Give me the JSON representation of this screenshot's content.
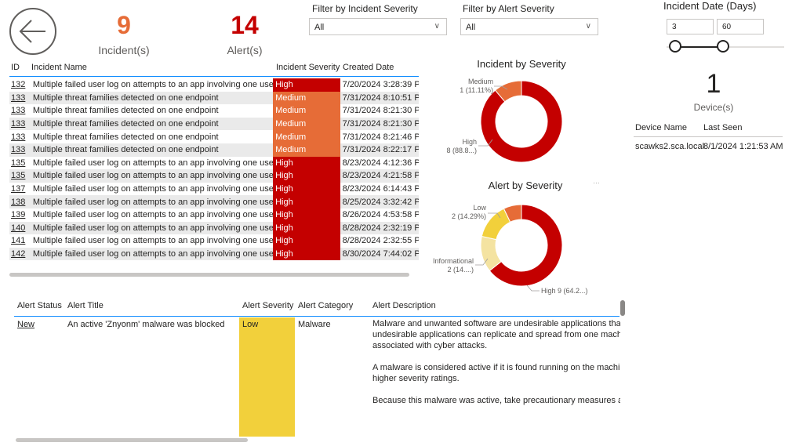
{
  "kpis": {
    "incidents_value": "9",
    "incidents_label": "Incident(s)",
    "alerts_value": "14",
    "alerts_label": "Alert(s)",
    "devices_value": "1",
    "devices_label": "Device(s)"
  },
  "filters": {
    "incident_severity_label": "Filter by Incident Severity",
    "incident_severity_value": "All",
    "alert_severity_label": "Filter by Alert Severity",
    "alert_severity_value": "All"
  },
  "date_filter": {
    "label": "Incident Date (Days)",
    "min_value": "3",
    "max_value": "60"
  },
  "incident_table": {
    "headers": [
      "ID",
      "Incident Name",
      "Incident Severity",
      "Created Date"
    ],
    "rows": [
      {
        "id": "132",
        "name": "Multiple failed user log on attempts to an app involving one user",
        "severity": "High",
        "created": "7/20/2024 3:28:39 PM"
      },
      {
        "id": "133",
        "name": "Multiple threat families detected on one endpoint",
        "severity": "Medium",
        "created": "7/31/2024 8:10:51 PM"
      },
      {
        "id": "133",
        "name": "Multiple threat families detected on one endpoint",
        "severity": "Medium",
        "created": "7/31/2024 8:21:30 PM"
      },
      {
        "id": "133",
        "name": "Multiple threat families detected on one endpoint",
        "severity": "Medium",
        "created": "7/31/2024 8:21:30 PM"
      },
      {
        "id": "133",
        "name": "Multiple threat families detected on one endpoint",
        "severity": "Medium",
        "created": "7/31/2024 8:21:46 PM"
      },
      {
        "id": "133",
        "name": "Multiple threat families detected on one endpoint",
        "severity": "Medium",
        "created": "7/31/2024 8:22:17 PM"
      },
      {
        "id": "135",
        "name": "Multiple failed user log on attempts to an app involving one user",
        "severity": "High",
        "created": "8/23/2024 4:12:36 PM"
      },
      {
        "id": "135",
        "name": "Multiple failed user log on attempts to an app involving one user",
        "severity": "High",
        "created": "8/23/2024 4:21:58 PM"
      },
      {
        "id": "137",
        "name": "Multiple failed user log on attempts to an app involving one user",
        "severity": "High",
        "created": "8/23/2024 6:14:43 PM"
      },
      {
        "id": "138",
        "name": "Multiple failed user log on attempts to an app involving one user",
        "severity": "High",
        "created": "8/25/2024 3:32:42 PM"
      },
      {
        "id": "139",
        "name": "Multiple failed user log on attempts to an app involving one user",
        "severity": "High",
        "created": "8/26/2024 4:53:58 PM"
      },
      {
        "id": "140",
        "name": "Multiple failed user log on attempts to an app involving one user",
        "severity": "High",
        "created": "8/28/2024 2:32:19 PM"
      },
      {
        "id": "141",
        "name": "Multiple failed user log on attempts to an app involving one user",
        "severity": "High",
        "created": "8/28/2024 2:32:55 PM"
      },
      {
        "id": "142",
        "name": "Multiple failed user log on attempts to an app involving one user",
        "severity": "High",
        "created": "8/30/2024 7:44:02 PM"
      }
    ]
  },
  "device_table": {
    "headers": [
      "Device Name",
      "Last Seen"
    ],
    "rows": [
      {
        "name": "scawks2.sca.local",
        "last_seen": "8/1/2024 1:21:53 AM"
      }
    ]
  },
  "alert_table": {
    "headers": [
      "Alert Status",
      "Alert Title",
      "Alert Severity",
      "Alert Category",
      "Alert Description"
    ],
    "row": {
      "status": "New",
      "title": "An active 'Znyonm' malware was blocked",
      "severity": "Low",
      "category": "Malware",
      "description_lines": [
        "Malware and unwanted software are undesirable applications that p",
        "undesirable applications can replicate and spread from one machine",
        "associated with cyber attacks.",
        "",
        "A malware is considered active if it is found running on the machine",
        "higher severity ratings.",
        "",
        "Because this malware was active, take precautionary measures and c"
      ]
    }
  },
  "colors": {
    "high": "#c40000",
    "medium": "#e66c37",
    "low": "#f2d03b",
    "informational": "#f4e3a1",
    "incident_kpi": "#e66c37",
    "alert_kpi": "#c40000"
  },
  "chart_data": [
    {
      "type": "pie",
      "title": "Incident by Severity",
      "categories": [
        "High",
        "Medium"
      ],
      "values": [
        8,
        1
      ],
      "labels": [
        "High\n8 (88.8...)",
        "Medium\n1 (11.11%)"
      ]
    },
    {
      "type": "pie",
      "title": "Alert by Severity",
      "categories": [
        "High",
        "Informational",
        "Low",
        "Medium"
      ],
      "values": [
        9,
        2,
        2,
        1
      ],
      "labels": [
        "High 9 (64.2...)",
        "Informational\n2 (14....)",
        "Low\n2 (14.29%)",
        ""
      ]
    }
  ],
  "icons": [
    "back-arrow-icon",
    "chevron-down-icon",
    "more-options-icon"
  ]
}
